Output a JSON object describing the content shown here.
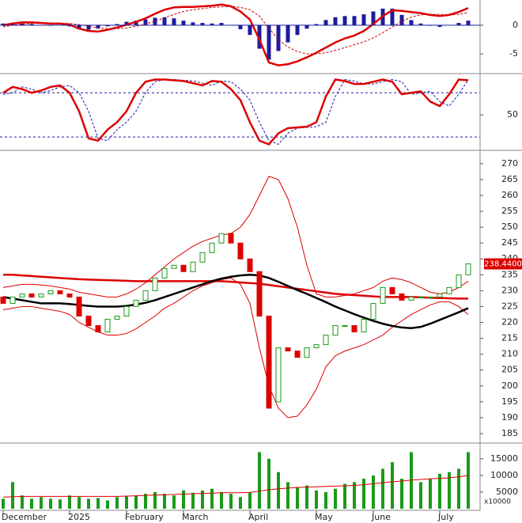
{
  "chart_data": [
    {
      "type": "macd",
      "ylim": [
        -8.3,
        4.4
      ],
      "yticks": [
        -5,
        0
      ],
      "series": [
        {
          "style": "bar",
          "color": "#1c1ca0",
          "values": [
            0.3,
            0.3,
            0.3,
            0.2,
            0,
            -0.1,
            0,
            -0.2,
            -0.7,
            -0.8,
            -0.6,
            -0.2,
            0.2,
            0.6,
            0.8,
            1.0,
            1.3,
            1.4,
            1.2,
            0.8,
            0.5,
            0.4,
            0.3,
            0.4,
            0,
            -0.7,
            -1.7,
            -4.1,
            -6.0,
            -4.5,
            -3.0,
            -1.7,
            -0.6,
            0.2,
            0.9,
            1.4,
            1.6,
            1.6,
            1.9,
            2.4,
            2.9,
            2.9,
            1.8,
            0.9,
            0.3,
            -0.1,
            -0.3,
            0,
            0.4,
            0.8
          ]
        },
        {
          "style": "dash",
          "color": "#cc0000",
          "values": [
            -0.3,
            0,
            0.2,
            0.3,
            0.4,
            0.4,
            0.3,
            0.3,
            0.1,
            -0.2,
            -0.5,
            -0.6,
            -0.6,
            -0.5,
            -0.2,
            0.2,
            0.7,
            1.3,
            1.9,
            2.4,
            2.7,
            2.9,
            3.1,
            3.2,
            3.3,
            3.1,
            2.7,
            1.6,
            -0.5,
            -2.5,
            -3.8,
            -4.6,
            -5.0,
            -5.0,
            -4.8,
            -4.4,
            -3.9,
            -3.4,
            -2.9,
            -2.2,
            -1.3,
            -0.3,
            0.7,
            1.4,
            1.8,
            1.9,
            1.9,
            1.8,
            1.9,
            2.2
          ]
        },
        {
          "style": "line",
          "color": "#dd0000",
          "values": [
            0,
            0.3,
            0.5,
            0.5,
            0.4,
            0.3,
            0.3,
            0.1,
            -0.6,
            -1.0,
            -1.1,
            -0.8,
            -0.4,
            0.1,
            0.6,
            1.2,
            2.0,
            2.7,
            3.1,
            3.2,
            3.2,
            3.3,
            3.4,
            3.6,
            3.3,
            2.4,
            1.0,
            -2.5,
            -6.5,
            -7.0,
            -6.8,
            -6.3,
            -5.6,
            -4.8,
            -3.9,
            -3.0,
            -2.3,
            -1.8,
            -1.0,
            0.2,
            1.6,
            2.6,
            2.5,
            2.3,
            2.1,
            1.8,
            1.6,
            1.8,
            2.3,
            3.0
          ]
        }
      ]
    },
    {
      "type": "oscillator",
      "ylim": [
        4,
        105
      ],
      "yticks": [
        50
      ],
      "levels": [
        20,
        80
      ],
      "series": [
        {
          "style": "dash",
          "color": "#1c1ca0",
          "values": [
            78,
            80,
            88,
            85,
            80,
            83,
            88,
            90,
            80,
            55,
            18,
            15,
            30,
            40,
            55,
            80,
            95,
            98,
            98,
            97,
            96,
            93,
            90,
            96,
            95,
            85,
            70,
            40,
            15,
            10,
            25,
            32,
            33,
            34,
            40,
            75,
            98,
            96,
            92,
            92,
            95,
            98,
            95,
            78,
            80,
            82,
            68,
            62,
            78,
            98
          ]
        },
        {
          "style": "line",
          "color": "#dd0000",
          "values": [
            80,
            88,
            85,
            80,
            83,
            88,
            90,
            80,
            55,
            18,
            15,
            30,
            40,
            55,
            80,
            95,
            98,
            98,
            97,
            96,
            93,
            90,
            96,
            95,
            85,
            70,
            40,
            15,
            10,
            25,
            32,
            33,
            34,
            40,
            75,
            98,
            96,
            92,
            92,
            95,
            98,
            95,
            78,
            80,
            82,
            68,
            62,
            78,
            98,
            97
          ]
        }
      ]
    },
    {
      "type": "candlestick",
      "ylim": [
        182.5,
        273.7
      ],
      "yticks": [
        185,
        190,
        195,
        200,
        205,
        210,
        215,
        220,
        225,
        230,
        235,
        240,
        245,
        250,
        255,
        260,
        265,
        270
      ],
      "categories": [
        "December",
        null,
        null,
        null,
        null,
        null,
        null,
        "2025",
        null,
        null,
        null,
        null,
        null,
        "February",
        null,
        null,
        null,
        null,
        null,
        "March",
        null,
        null,
        null,
        null,
        null,
        null,
        "April",
        null,
        null,
        null,
        null,
        null,
        null,
        "May",
        null,
        null,
        null,
        null,
        null,
        "June",
        null,
        null,
        null,
        null,
        null,
        null,
        "July",
        null,
        null,
        null
      ],
      "up_color": "#1a9a1a",
      "down_color": "#dd0000",
      "open": [
        228,
        226,
        228,
        229,
        228,
        229,
        230,
        229,
        228,
        222,
        219,
        217,
        221,
        222,
        225,
        227,
        230,
        234,
        237,
        238,
        236,
        239,
        242,
        245,
        248,
        245,
        240,
        236,
        222,
        195,
        212,
        211,
        209,
        212,
        213,
        216,
        219,
        219,
        217,
        221,
        226,
        231,
        229,
        227,
        228,
        228,
        228,
        229,
        231,
        235
      ],
      "close": [
        226,
        228,
        229,
        228,
        229,
        230,
        229,
        228,
        222,
        219,
        217,
        221,
        222,
        225,
        227,
        230,
        234,
        237,
        238,
        236,
        239,
        242,
        245,
        248,
        245,
        240,
        236,
        222,
        193,
        212,
        211,
        209,
        212,
        213,
        216,
        219,
        219,
        217,
        221,
        226,
        231,
        229,
        227,
        228,
        228,
        228,
        229,
        231,
        235,
        238.44
      ],
      "last_price_label": "238.4400",
      "overlays": [
        {
          "color": "#dd0000",
          "width": 1,
          "values": [
            231,
            231.5,
            232,
            232,
            231.8,
            231.5,
            231,
            230.5,
            229.5,
            229,
            228.5,
            228,
            228,
            229,
            230.5,
            232.5,
            235,
            237.5,
            240,
            242,
            244,
            245.5,
            246.5,
            247.5,
            248,
            250,
            254,
            260,
            266,
            265,
            259,
            250,
            238,
            229,
            228,
            228,
            228.5,
            229,
            230,
            231,
            233,
            234,
            233.5,
            232.5,
            231,
            229.5,
            229,
            229.5,
            231,
            233
          ]
        },
        {
          "color": "#dd0000",
          "width": 1,
          "values": [
            224,
            224.5,
            225,
            225,
            224.5,
            224,
            223.5,
            222.5,
            220,
            218.5,
            217,
            216,
            216,
            216.5,
            218,
            220,
            222,
            224.5,
            226,
            228,
            230,
            231.5,
            232.5,
            233.5,
            234,
            232,
            226,
            212,
            200,
            193,
            190,
            190.5,
            194,
            199,
            206,
            209.5,
            211,
            212,
            213,
            214.5,
            216,
            218.5,
            220.5,
            222.5,
            224,
            225.5,
            226.5,
            226.5,
            225,
            222.5
          ]
        },
        {
          "color": "#dd0000",
          "width": 2.5,
          "values": [
            235,
            235,
            234.8,
            234.6,
            234.4,
            234.2,
            234,
            233.8,
            233.6,
            233.5,
            233.4,
            233.3,
            233.2,
            233.1,
            233,
            233,
            233,
            233,
            233,
            233,
            233,
            233,
            233,
            233,
            232.8,
            232.6,
            232.4,
            232.2,
            231.8,
            231.4,
            231,
            230.6,
            230.2,
            229.8,
            229.4,
            229,
            228.8,
            228.6,
            228.4,
            228.2,
            228,
            228,
            228,
            228,
            227.9,
            227.8,
            227.7,
            227.6,
            227.5,
            227.5
          ]
        },
        {
          "color": "#000000",
          "width": 2.5,
          "values": [
            228,
            227.5,
            227,
            226.5,
            226,
            226,
            226,
            225.8,
            225.5,
            225.2,
            225,
            225,
            225,
            225.2,
            225.6,
            226.2,
            227,
            228,
            229,
            230,
            231,
            232,
            233,
            233.8,
            234.4,
            234.8,
            235,
            234.8,
            234,
            232.8,
            231.5,
            230.2,
            229,
            227.7,
            226.4,
            225,
            223.8,
            222.6,
            221.5,
            220.5,
            219.6,
            218.9,
            218.4,
            218.2,
            218.6,
            219.6,
            220.8,
            222,
            223.2,
            224.5
          ]
        }
      ]
    },
    {
      "type": "volume",
      "ylim": [
        0,
        19000
      ],
      "yticks": [
        5000,
        10000,
        15000
      ],
      "unit_label": "x10000",
      "color": "#1a9a1a",
      "ma_color": "#dd0000",
      "values": [
        3000,
        8000,
        4000,
        3000,
        3500,
        3000,
        2800,
        4000,
        3500,
        3000,
        3200,
        2500,
        3500,
        3800,
        4000,
        4500,
        5000,
        4500,
        4000,
        5500,
        4800,
        5500,
        6000,
        5000,
        4500,
        3500,
        5000,
        17000,
        15000,
        11000,
        8000,
        6500,
        7000,
        5500,
        5000,
        6000,
        7500,
        8000,
        9000,
        10000,
        12000,
        14000,
        9000,
        17000,
        8000,
        9000,
        10500,
        11000,
        12000,
        17000
      ],
      "ma": [
        3500,
        3600,
        3700,
        3700,
        3700,
        3700,
        3700,
        3700,
        3700,
        3700,
        3700,
        3700,
        3700,
        3800,
        3900,
        4000,
        4100,
        4200,
        4300,
        4400,
        4500,
        4600,
        4700,
        4800,
        4800,
        4800,
        4900,
        5300,
        5700,
        6000,
        6200,
        6400,
        6500,
        6600,
        6700,
        6800,
        6900,
        7000,
        7200,
        7500,
        7800,
        8100,
        8300,
        8600,
        8800,
        9000,
        9100,
        9300,
        9600,
        10000
      ]
    }
  ]
}
